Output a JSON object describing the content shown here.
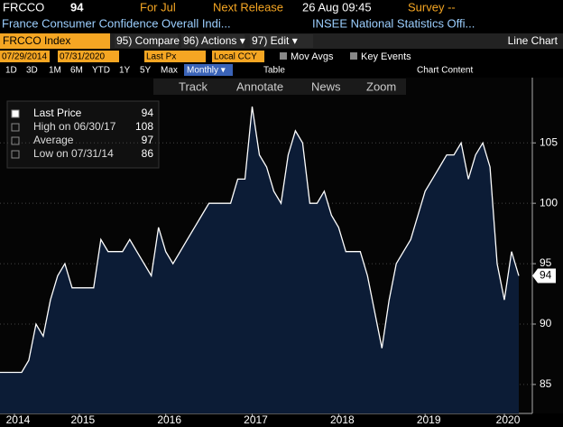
{
  "header": {
    "ticker": "FRCCO",
    "last": "94",
    "period": "For Jul",
    "next_release_label": "Next Release",
    "next_release": "26 Aug 09:45",
    "survey": "Survey --",
    "name": "France Consumer Confidence Overall Indi...",
    "source": "INSEE National Statistics Offi..."
  },
  "toolbar": {
    "security": "FRCCO Index",
    "buttons": [
      "95) Compare",
      "96) Actions ▾",
      "97) Edit ▾"
    ],
    "chart_type": "Line Chart"
  },
  "settings": {
    "start": "07/29/2014",
    "end": "07/31/2020",
    "field": "Last Px",
    "currency": "Local CCY",
    "options": [
      "Mov Avgs",
      "Key Events"
    ]
  },
  "ranges": [
    "1D",
    "3D",
    "1M",
    "6M",
    "YTD",
    "1Y",
    "5Y",
    "Max"
  ],
  "frequency": "Monthly ▾",
  "table": "Table",
  "chart_content": "Chart Content",
  "tools": [
    "Track",
    "Annotate",
    "News",
    "Zoom"
  ],
  "chart_data": {
    "type": "area",
    "categories": [
      null,
      null,
      "2014",
      null,
      null,
      null,
      null,
      null,
      null,
      null,
      null,
      "2015",
      null,
      null,
      null,
      null,
      null,
      null,
      null,
      null,
      null,
      null,
      null,
      "2016",
      null,
      null,
      null,
      null,
      null,
      null,
      null,
      null,
      null,
      null,
      null,
      "2017",
      null,
      null,
      null,
      null,
      null,
      null,
      null,
      null,
      null,
      null,
      null,
      "2018",
      null,
      null,
      null,
      null,
      null,
      null,
      null,
      null,
      null,
      null,
      null,
      "2019",
      null,
      null,
      null,
      null,
      null,
      null,
      null,
      null,
      null,
      null,
      "2020",
      null,
      null
    ],
    "values": [
      86,
      86,
      86,
      86,
      87,
      90,
      89,
      92,
      94,
      95,
      93,
      93,
      93,
      93,
      97,
      96,
      96,
      96,
      97,
      96,
      95,
      94,
      98,
      96,
      95,
      96,
      97,
      98,
      99,
      100,
      100,
      100,
      100,
      102,
      102,
      108,
      104,
      103,
      101,
      100,
      104,
      106,
      105,
      100,
      100,
      101,
      99,
      98,
      96,
      96,
      96,
      94,
      91,
      88,
      92,
      95,
      96,
      97,
      99,
      101,
      102,
      103,
      104,
      104,
      105,
      102,
      104,
      105,
      103,
      95,
      92,
      96,
      94
    ],
    "color": "#ffffff",
    "fill": "#0c1c36",
    "ylim": [
      82.6,
      110.4
    ],
    "yticks": [
      85,
      90,
      95,
      100,
      105
    ],
    "grid": true,
    "legend": [
      {
        "label": "Last Price",
        "value": 94
      },
      {
        "label": "High on 06/30/17",
        "value": 108
      },
      {
        "label": "Average",
        "value": 97
      },
      {
        "label": "Low on 07/31/14",
        "value": 86
      }
    ]
  }
}
